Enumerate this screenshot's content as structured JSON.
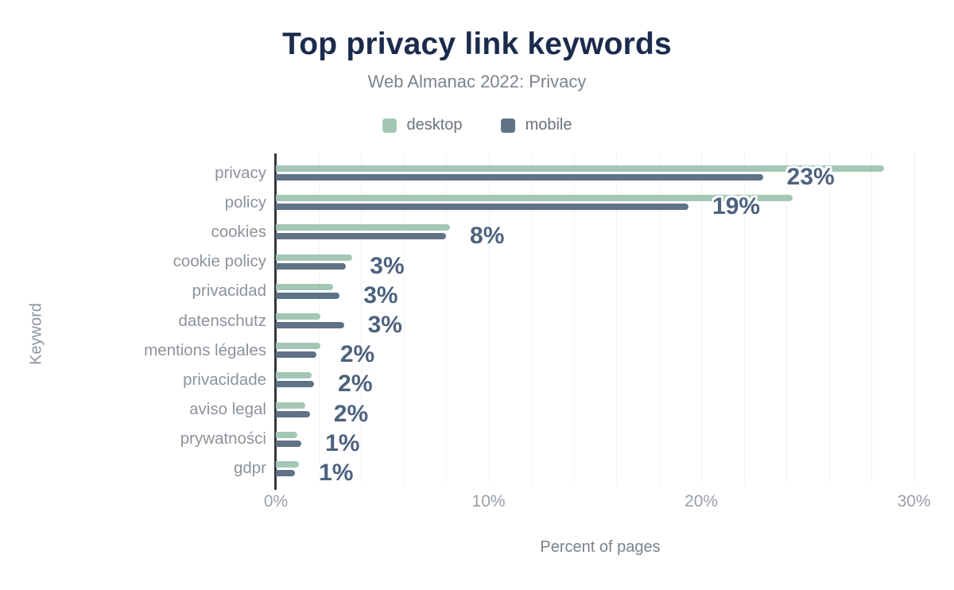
{
  "title": "Top privacy link keywords",
  "subtitle": "Web Almanac 2022: Privacy",
  "legend": [
    {
      "label": "desktop",
      "color": "#a4c7b5"
    },
    {
      "label": "mobile",
      "color": "#5f7286"
    }
  ],
  "axes": {
    "x_label": "Percent of pages",
    "y_label": "Keyword",
    "x_ticks": [
      "0%",
      "10%",
      "20%",
      "30%"
    ]
  },
  "colors": {
    "desktop_bar": "#a4c7b5",
    "mobile_bar": "#5f7286",
    "title": "#1b2b4d",
    "subtitle": "#7c838b",
    "category_label": "#8d939b",
    "tick_label": "#9aa0a8",
    "value_label": "#4d627e",
    "axis_line": "#35373b",
    "gridline": "#f0f1f4",
    "background": "#ffffff"
  },
  "chart_data": {
    "type": "bar",
    "orientation": "horizontal",
    "title": "Top privacy link keywords",
    "subtitle": "Web Almanac 2022: Privacy",
    "xlabel": "Percent of pages",
    "ylabel": "Keyword",
    "categories": [
      "privacy",
      "policy",
      "cookies",
      "cookie policy",
      "privacidad",
      "datenschutz",
      "mentions légales",
      "privacidade",
      "aviso legal",
      "prywatności",
      "gdpr"
    ],
    "series": [
      {
        "name": "desktop",
        "values": [
          28.6,
          24.3,
          8.2,
          3.6,
          2.7,
          2.1,
          2.1,
          1.7,
          1.4,
          1.0,
          1.1
        ]
      },
      {
        "name": "mobile",
        "values": [
          22.9,
          19.4,
          8.0,
          3.3,
          3.0,
          3.2,
          1.9,
          1.8,
          1.6,
          1.2,
          0.9
        ]
      }
    ],
    "data_labels": [
      "23%",
      "19%",
      "8%",
      "3%",
      "3%",
      "3%",
      "2%",
      "2%",
      "2%",
      "1%",
      "1%"
    ],
    "data_label_series": "mobile",
    "xlim": [
      0,
      30.5
    ],
    "x_tick_values": [
      0,
      10,
      20,
      30
    ],
    "gridline_step": 2,
    "grid": true,
    "legend_position": "top"
  }
}
